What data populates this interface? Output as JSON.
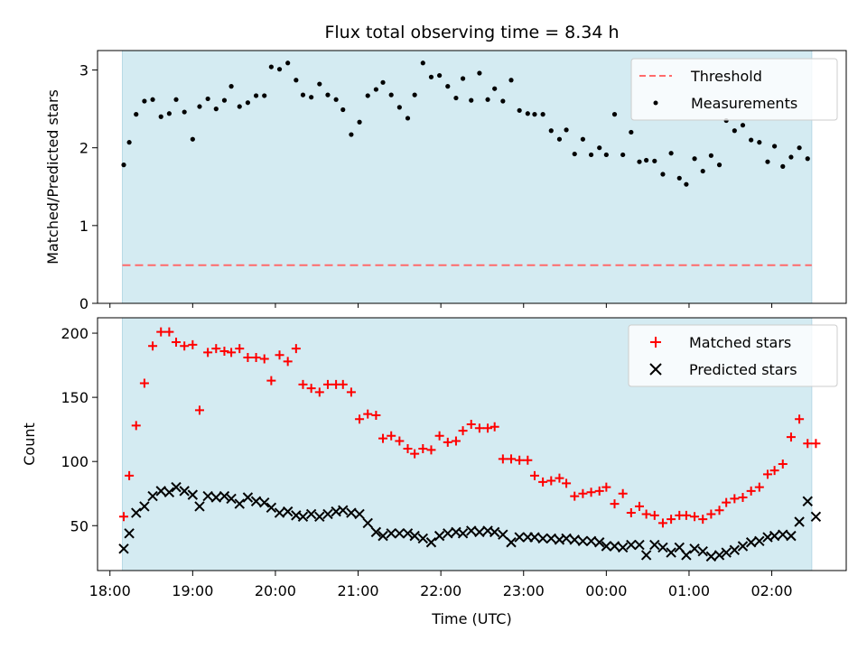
{
  "chart_data": [
    {
      "type": "scatter",
      "title": "Flux total observing time = 8.34 h",
      "xlabel": "",
      "ylabel": "Matched/Predicted stars",
      "x_unit": "hours since 18:00 UTC",
      "xlim": [
        "17:51",
        "02:54"
      ],
      "ylim": [
        0,
        3.25
      ],
      "yticks": [
        0,
        1,
        2,
        3
      ],
      "observing_window": [
        "18:09",
        "02:29"
      ],
      "observing_window_color": "#d4ebf2",
      "legend_position": "top-right",
      "series": [
        {
          "name": "Threshold",
          "kind": "dashed-line",
          "color": "#ff6b6b",
          "y": 0.49,
          "x_range": [
            "18:09",
            "02:29"
          ]
        },
        {
          "name": "Measurements",
          "kind": "points",
          "color": "#000000",
          "x": [
            "18:10",
            "18:14",
            "18:19",
            "18:25",
            "18:31",
            "18:37",
            "18:43",
            "18:48",
            "18:54",
            "19:00",
            "19:05",
            "19:11",
            "19:17",
            "19:23",
            "19:28",
            "19:34",
            "19:40",
            "19:46",
            "19:52",
            "19:57",
            "20:03",
            "20:09",
            "20:15",
            "20:20",
            "20:26",
            "20:32",
            "20:38",
            "20:44",
            "20:49",
            "20:55",
            "21:01",
            "21:07",
            "21:13",
            "21:18",
            "21:24",
            "21:30",
            "21:36",
            "21:41",
            "21:47",
            "21:53",
            "21:59",
            "22:05",
            "22:11",
            "22:16",
            "22:22",
            "22:28",
            "22:34",
            "22:39",
            "22:45",
            "22:51",
            "22:57",
            "23:03",
            "23:08",
            "23:14",
            "23:20",
            "23:26",
            "23:31",
            "23:37",
            "23:43",
            "23:49",
            "23:55",
            "00:00",
            "00:06",
            "00:12",
            "00:18",
            "00:24",
            "00:29",
            "00:35",
            "00:41",
            "00:47",
            "00:53",
            "00:58",
            "01:04",
            "01:10",
            "01:16",
            "01:22",
            "01:27",
            "01:33",
            "01:39",
            "01:45",
            "01:51",
            "01:57",
            "02:02",
            "02:08",
            "02:14",
            "02:20",
            "02:26"
          ],
          "y": [
            1.78,
            2.07,
            2.43,
            2.6,
            2.62,
            2.4,
            2.44,
            2.62,
            2.46,
            2.11,
            2.53,
            2.63,
            2.5,
            2.61,
            2.79,
            2.53,
            2.58,
            2.67,
            2.67,
            3.04,
            3.01,
            3.09,
            2.87,
            2.68,
            2.65,
            2.82,
            2.68,
            2.62,
            2.49,
            2.17,
            2.33,
            2.67,
            2.75,
            2.84,
            2.68,
            2.52,
            2.38,
            2.68,
            3.09,
            2.91,
            2.93,
            2.79,
            2.64,
            2.89,
            2.61,
            2.96,
            2.62,
            2.76,
            2.6,
            2.87,
            2.48,
            2.44,
            2.43,
            2.43,
            2.22,
            2.11,
            2.23,
            1.92,
            2.11,
            1.91,
            2.0,
            1.91,
            2.43,
            1.91,
            2.2,
            1.82,
            1.84,
            1.83,
            1.66,
            1.93,
            1.61,
            1.53,
            1.86,
            1.7,
            1.9,
            1.78,
            2.35,
            2.22,
            2.29,
            2.1,
            2.07,
            1.82,
            2.02,
            1.76,
            1.88,
            2.0,
            1.86
          ]
        }
      ]
    },
    {
      "type": "scatter",
      "xlabel": "Time (UTC)",
      "ylabel": "Count",
      "xticks": [
        "18:00",
        "19:00",
        "20:00",
        "21:00",
        "22:00",
        "23:00",
        "00:00",
        "01:00",
        "02:00"
      ],
      "ylim": [
        15,
        212
      ],
      "yticks": [
        50,
        100,
        150,
        200
      ],
      "legend_position": "top-right",
      "series": [
        {
          "name": "Matched stars",
          "marker": "+",
          "color": "#ff0000",
          "x": [
            "18:10",
            "18:14",
            "18:19",
            "18:25",
            "18:31",
            "18:37",
            "18:43",
            "18:48",
            "18:54",
            "19:00",
            "19:05",
            "19:11",
            "19:17",
            "19:23",
            "19:28",
            "19:34",
            "19:40",
            "19:46",
            "19:52",
            "19:57",
            "20:03",
            "20:09",
            "20:15",
            "20:20",
            "20:26",
            "20:32",
            "20:38",
            "20:44",
            "20:49",
            "20:55",
            "21:01",
            "21:07",
            "21:13",
            "21:18",
            "21:24",
            "21:30",
            "21:36",
            "21:41",
            "21:47",
            "21:53",
            "21:59",
            "22:05",
            "22:11",
            "22:16",
            "22:22",
            "22:28",
            "22:34",
            "22:39",
            "22:45",
            "22:51",
            "22:57",
            "23:03",
            "23:08",
            "23:14",
            "23:20",
            "23:26",
            "23:31",
            "23:37",
            "23:43",
            "23:49",
            "23:55",
            "00:00",
            "00:06",
            "00:12",
            "00:18",
            "00:24",
            "00:29",
            "00:35",
            "00:41",
            "00:47",
            "00:53",
            "00:58",
            "01:04",
            "01:10",
            "01:16",
            "01:22",
            "01:27",
            "01:33",
            "01:39",
            "01:45",
            "01:51",
            "01:57",
            "02:02",
            "02:08",
            "02:14",
            "02:20",
            "02:26",
            "02:32"
          ],
          "y": [
            57,
            89,
            128,
            161,
            190,
            201,
            201,
            193,
            190,
            191,
            140,
            185,
            188,
            186,
            185,
            188,
            181,
            181,
            180,
            163,
            183,
            178,
            188,
            160,
            157,
            154,
            160,
            160,
            160,
            154,
            133,
            137,
            136,
            118,
            120,
            116,
            110,
            106,
            110,
            109,
            120,
            115,
            116,
            124,
            129,
            126,
            126,
            127,
            102,
            102,
            101,
            101,
            89,
            84,
            85,
            87,
            83,
            73,
            75,
            76,
            77,
            80,
            67,
            75,
            60,
            65,
            59,
            58,
            52,
            55,
            58,
            58,
            57,
            55,
            59,
            62,
            68,
            71,
            72,
            77,
            80,
            90,
            93,
            98,
            119,
            133,
            114,
            114
          ]
        },
        {
          "name": "Predicted stars",
          "marker": "x",
          "color": "#000000",
          "x": [
            "18:10",
            "18:14",
            "18:19",
            "18:25",
            "18:31",
            "18:37",
            "18:43",
            "18:48",
            "18:54",
            "19:00",
            "19:05",
            "19:11",
            "19:17",
            "19:23",
            "19:28",
            "19:34",
            "19:40",
            "19:46",
            "19:52",
            "19:57",
            "20:03",
            "20:09",
            "20:15",
            "20:20",
            "20:26",
            "20:32",
            "20:38",
            "20:44",
            "20:49",
            "20:55",
            "21:01",
            "21:07",
            "21:13",
            "21:18",
            "21:24",
            "21:30",
            "21:36",
            "21:41",
            "21:47",
            "21:53",
            "21:59",
            "22:05",
            "22:11",
            "22:16",
            "22:22",
            "22:28",
            "22:34",
            "22:39",
            "22:45",
            "22:51",
            "22:57",
            "23:03",
            "23:08",
            "23:14",
            "23:20",
            "23:26",
            "23:31",
            "23:37",
            "23:43",
            "23:49",
            "23:55",
            "00:00",
            "00:06",
            "00:12",
            "00:18",
            "00:24",
            "00:29",
            "00:35",
            "00:41",
            "00:47",
            "00:53",
            "00:58",
            "01:04",
            "01:10",
            "01:16",
            "01:22",
            "01:27",
            "01:33",
            "01:39",
            "01:45",
            "01:51",
            "01:57",
            "02:02",
            "02:08",
            "02:14",
            "02:20",
            "02:26",
            "02:32"
          ],
          "y": [
            32,
            44,
            60,
            65,
            73,
            77,
            76,
            80,
            77,
            74,
            65,
            73,
            72,
            73,
            71,
            67,
            72,
            69,
            68,
            64,
            60,
            61,
            58,
            57,
            59,
            57,
            59,
            61,
            62,
            60,
            59,
            52,
            45,
            42,
            44,
            44,
            44,
            42,
            40,
            37,
            42,
            44,
            45,
            44,
            46,
            45,
            46,
            45,
            43,
            37,
            41,
            41,
            41,
            40,
            40,
            39,
            40,
            39,
            38,
            38,
            37,
            34,
            34,
            33,
            35,
            35,
            27,
            35,
            33,
            29,
            33,
            27,
            32,
            30,
            26,
            27,
            29,
            31,
            34,
            37,
            38,
            41,
            42,
            43,
            42,
            53,
            69,
            57
          ]
        }
      ]
    }
  ]
}
